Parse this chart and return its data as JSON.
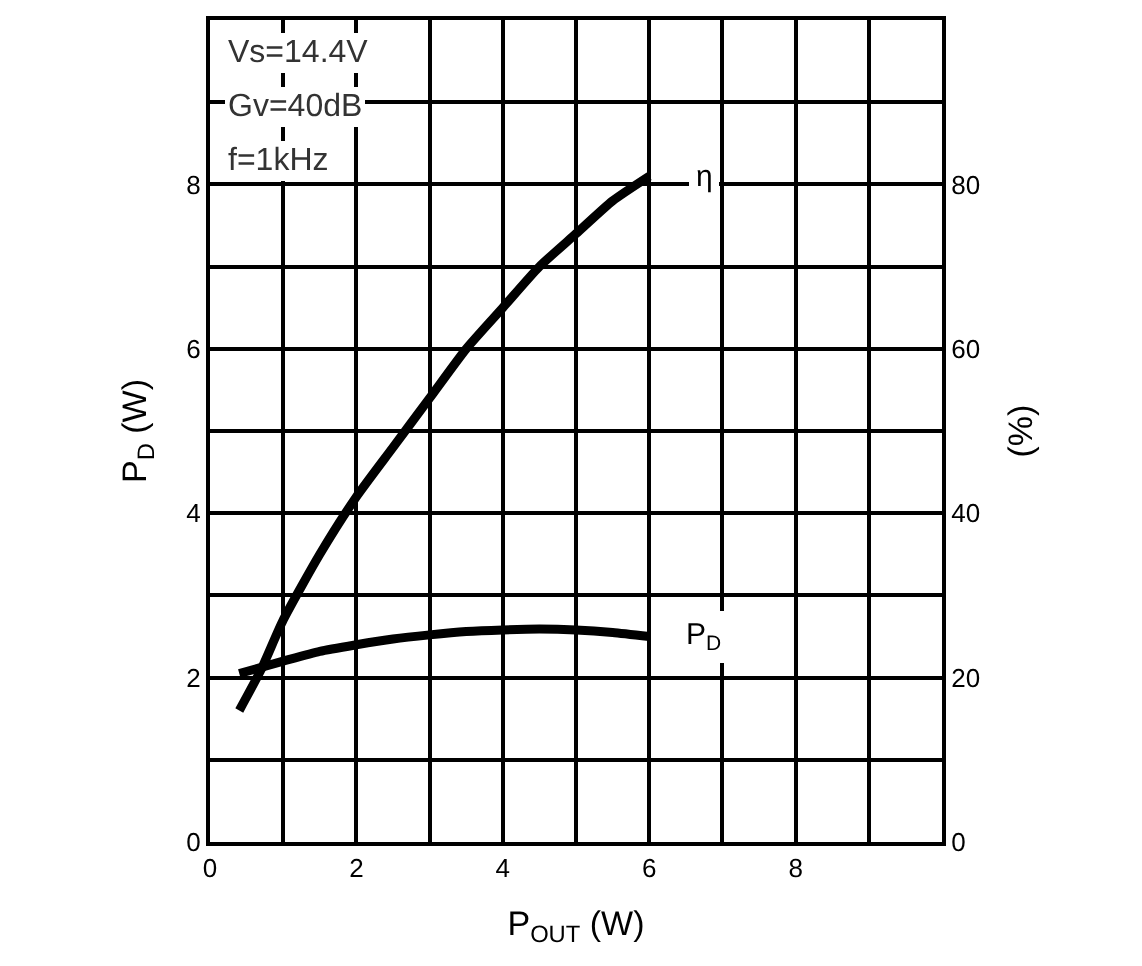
{
  "chart_data": {
    "type": "line",
    "xlabel": "P$_{OUT}$ (W)",
    "ylabel": "P$_{D}$ (W)",
    "y2label": "(%)",
    "annotations": [
      "Vs=14.4V",
      "Gv=40dB",
      "f=1kHz"
    ],
    "series": [
      {
        "name": "η",
        "color": "#000000",
        "axis": "y2",
        "x": [
          0.4,
          0.7,
          1,
          1.5,
          2,
          2.5,
          3,
          3.5,
          4,
          4.5,
          5,
          5.5,
          6
        ],
        "values": [
          16,
          21,
          27,
          35,
          42,
          48,
          54,
          60,
          65,
          70,
          74,
          78,
          81
        ]
      },
      {
        "name": "P$_{D}$",
        "color": "#000000",
        "x": [
          0.4,
          1,
          1.5,
          2,
          2.5,
          3,
          3.5,
          4,
          4.5,
          5,
          5.5,
          6
        ],
        "values": [
          2.05,
          2.2,
          2.32,
          2.4,
          2.47,
          2.52,
          2.56,
          2.58,
          2.59,
          2.58,
          2.55,
          2.5
        ]
      }
    ],
    "xlim": [
      0,
      10
    ],
    "ylim": [
      0,
      10
    ],
    "y2lim": [
      0,
      100
    ],
    "xticks": [
      0,
      {
        "value": 1,
        "label": null
      },
      2,
      {
        "value": 3,
        "label": null
      },
      4,
      {
        "value": 5,
        "label": null
      },
      6,
      {
        "value": 7,
        "label": null
      },
      8,
      {
        "value": 9,
        "label": null
      },
      {
        "value": 10,
        "label": null
      }
    ],
    "yticks": [
      0,
      {
        "value": 1,
        "label": null
      },
      2,
      {
        "value": 3,
        "label": null
      },
      4,
      {
        "value": 5,
        "label": null
      },
      6,
      {
        "value": 7,
        "label": null
      },
      8,
      {
        "value": 9,
        "label": null
      },
      {
        "value": 10,
        "label": null
      }
    ],
    "y2ticks": [
      0,
      20,
      40,
      60,
      80
    ],
    "grid": true,
    "legend": false,
    "marker": "none",
    "line_style": "solid"
  }
}
